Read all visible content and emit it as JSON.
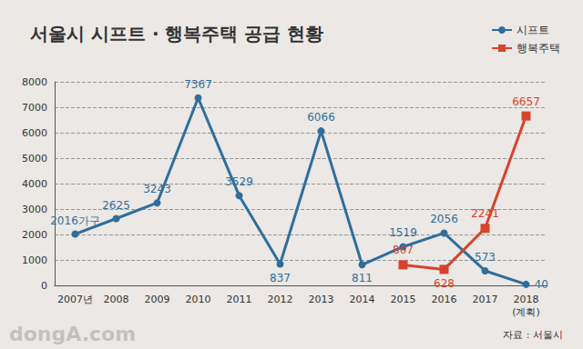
{
  "chart_data": {
    "type": "line",
    "title": "서울시 시프트 · 행복주택 공급 현황",
    "categories": [
      "2007년",
      "2008",
      "2009",
      "2010",
      "2011",
      "2012",
      "2013",
      "2014",
      "2015",
      "2016",
      "2017",
      "2018\n(계획)"
    ],
    "series": [
      {
        "name": "시프트",
        "color": "#2f6e9c",
        "marker": "circle",
        "values": [
          2016,
          2625,
          3243,
          7367,
          3529,
          837,
          6066,
          811,
          1519,
          2056,
          573,
          40
        ],
        "value_labels": [
          "2016가구",
          "2625",
          "3243",
          "7367",
          "3529",
          "837",
          "6066",
          "811",
          "1519",
          "2056",
          "573",
          "40"
        ]
      },
      {
        "name": "행복주택",
        "color": "#d8432c",
        "marker": "rect",
        "values": [
          null,
          null,
          null,
          null,
          null,
          null,
          null,
          null,
          807,
          628,
          2241,
          6657
        ]
      }
    ],
    "ylim": [
      0,
      8000
    ],
    "yticks": [
      0,
      1000,
      2000,
      3000,
      4000,
      5000,
      6000,
      7000,
      8000
    ],
    "grid": true,
    "legend": "top-right",
    "data_labels": true,
    "annotations": [
      "자료 : 서울시",
      "dongA.com"
    ]
  }
}
